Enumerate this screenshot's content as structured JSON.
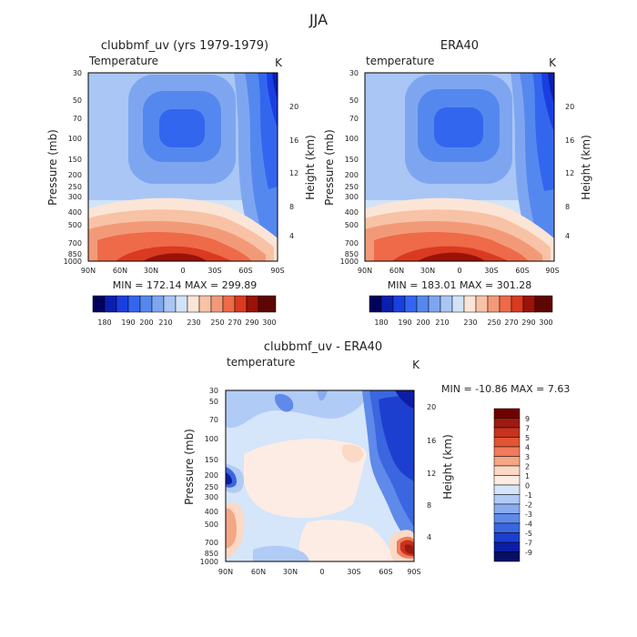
{
  "figure_title": "JJA",
  "chart_data": [
    {
      "type": "heatmap",
      "id": "model",
      "title": "clubbmf_uv (yrs 1979-1979)",
      "variable": "Temperature",
      "units": "K",
      "ylabel": "Pressure (mb)",
      "ylabel_right": "Height (km)",
      "x_ticks": [
        "90N",
        "60N",
        "30N",
        "0",
        "30S",
        "60S",
        "90S"
      ],
      "y_ticks_pressure": [
        30,
        50,
        70,
        100,
        150,
        200,
        250,
        300,
        400,
        500,
        700,
        850,
        1000
      ],
      "y_ticks_height": [
        4,
        8,
        12,
        16,
        20
      ],
      "stats": "MIN = 172.14   MAX = 299.89",
      "min": 172.14,
      "max": 299.89,
      "colorbar_levels": [
        180,
        190,
        200,
        210,
        220,
        230,
        240,
        250,
        260,
        270,
        280,
        290,
        300
      ],
      "colorbar_labels": [
        "180",
        "190",
        "200",
        "210",
        "230",
        "250",
        "270",
        "290",
        "300"
      ]
    },
    {
      "type": "heatmap",
      "id": "obs",
      "title": "ERA40",
      "variable": "temperature",
      "units": "K",
      "ylabel": "Pressure (mb)",
      "ylabel_right": "Height (km)",
      "x_ticks": [
        "90N",
        "60N",
        "30N",
        "0",
        "30S",
        "60S",
        "90S"
      ],
      "y_ticks_pressure": [
        30,
        50,
        70,
        100,
        150,
        200,
        250,
        300,
        400,
        500,
        700,
        850,
        1000
      ],
      "y_ticks_height": [
        4,
        8,
        12,
        16,
        20
      ],
      "stats": "MIN = 183.01   MAX = 301.28",
      "min": 183.01,
      "max": 301.28,
      "colorbar_levels": [
        180,
        190,
        200,
        210,
        220,
        230,
        240,
        250,
        260,
        270,
        280,
        290,
        300
      ],
      "colorbar_labels": [
        "180",
        "190",
        "200",
        "210",
        "230",
        "250",
        "270",
        "290",
        "300"
      ]
    },
    {
      "type": "heatmap",
      "id": "diff",
      "title": "clubbmf_uv - ERA40",
      "variable": "temperature",
      "units": "K",
      "ylabel": "Pressure (mb)",
      "ylabel_right": "Height (km)",
      "x_ticks": [
        "90N",
        "60N",
        "30N",
        "0",
        "30S",
        "60S",
        "90S"
      ],
      "y_ticks_pressure": [
        30,
        50,
        70,
        100,
        150,
        200,
        250,
        300,
        400,
        500,
        700,
        850,
        1000
      ],
      "y_ticks_height": [
        4,
        8,
        12,
        16,
        20
      ],
      "stats": "MIN = -10.86   MAX =   7.63",
      "min": -10.86,
      "max": 7.63,
      "colorbar_levels": [
        9,
        7,
        5,
        4,
        3,
        2,
        1,
        0,
        -1,
        -2,
        -3,
        -4,
        -5,
        -7,
        -9
      ],
      "colorbar_labels": [
        "9",
        "7",
        "5",
        "4",
        "3",
        "2",
        "1",
        "0",
        "-1",
        "-2",
        "-3",
        "-4",
        "-5",
        "-7",
        "-9"
      ]
    }
  ],
  "colors": {
    "model_scale": [
      "#02025e",
      "#0a1fb0",
      "#1a3fe0",
      "#3366ee",
      "#5588ee",
      "#7ea6f0",
      "#a9c6f5",
      "#d2e3f8",
      "#fbe5d6",
      "#f8c2a6",
      "#f29a78",
      "#ee6a48",
      "#d93a20",
      "#9b1208",
      "#5e0602"
    ],
    "diff_scale": [
      "#6e0000",
      "#9e1a10",
      "#c8321e",
      "#e25535",
      "#f07c5c",
      "#f5a685",
      "#fbd9c4",
      "#fdece4",
      "#d5e5fa",
      "#b0cbf5",
      "#89acee",
      "#5f8ae9",
      "#3a66e0",
      "#1d3fcf",
      "#0c1ea5",
      "#050f66"
    ]
  }
}
